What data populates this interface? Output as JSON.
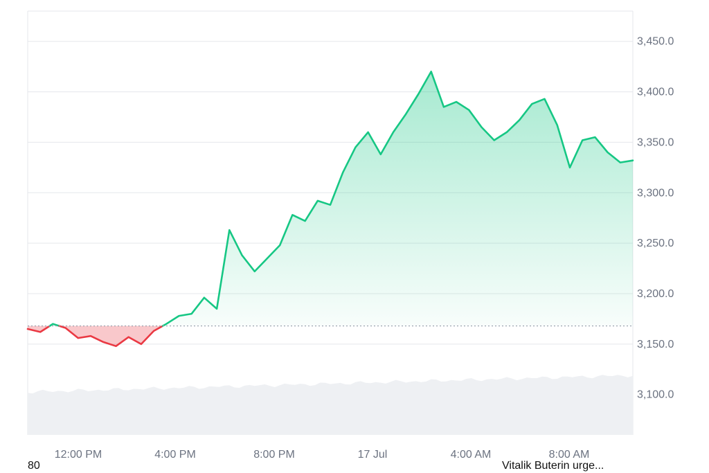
{
  "chart_data": {
    "type": "area",
    "baseline": 3168,
    "ylim": [
      3060,
      3480
    ],
    "y_ticks": [
      "3,450.0",
      "3,400.0",
      "3,350.0",
      "3,300.0",
      "3,250.0",
      "3,200.0",
      "3,150.0",
      "3,100.0"
    ],
    "x_ticks": [
      "12:00 PM",
      "4:00 PM",
      "8:00 PM",
      "17 Jul",
      "4:00 AM",
      "8:00 AM"
    ],
    "grid": true,
    "colors": {
      "up": "#16c784",
      "down": "#ea3943",
      "grid": "#e5e7eb",
      "baseline": "#9ca3af",
      "volume": "#eef0f3"
    },
    "series": [
      {
        "x": [
          0,
          0.5,
          1,
          1.5,
          2,
          2.5,
          3,
          3.5,
          4,
          4.5,
          5,
          5.5,
          6,
          6.5,
          7,
          7.5,
          8,
          8.5,
          9,
          9.5,
          10,
          10.5,
          11,
          11.5,
          12,
          12.5,
          13,
          13.5,
          14,
          14.5,
          15,
          15.5,
          16,
          16.5,
          17,
          17.5,
          18,
          18.5,
          19,
          19.5,
          20,
          20.5,
          21,
          21.5,
          22,
          22.5,
          23,
          23.5,
          24
        ],
        "values": [
          3165,
          3162,
          3170,
          3166,
          3156,
          3158,
          3152,
          3148,
          3157,
          3150,
          3163,
          3170,
          3178,
          3180,
          3196,
          3185,
          3263,
          3238,
          3222,
          3235,
          3248,
          3278,
          3272,
          3292,
          3288,
          3320,
          3345,
          3360,
          3338,
          3360,
          3378,
          3398,
          3420,
          3385,
          3390,
          3382,
          3365,
          3352,
          3360,
          3372,
          3388,
          3393,
          3367,
          3325,
          3352,
          3355,
          3340,
          3330,
          3332
        ]
      }
    ]
  },
  "footer": {
    "left": "80",
    "right": "Vitalik Buterin urge..."
  }
}
